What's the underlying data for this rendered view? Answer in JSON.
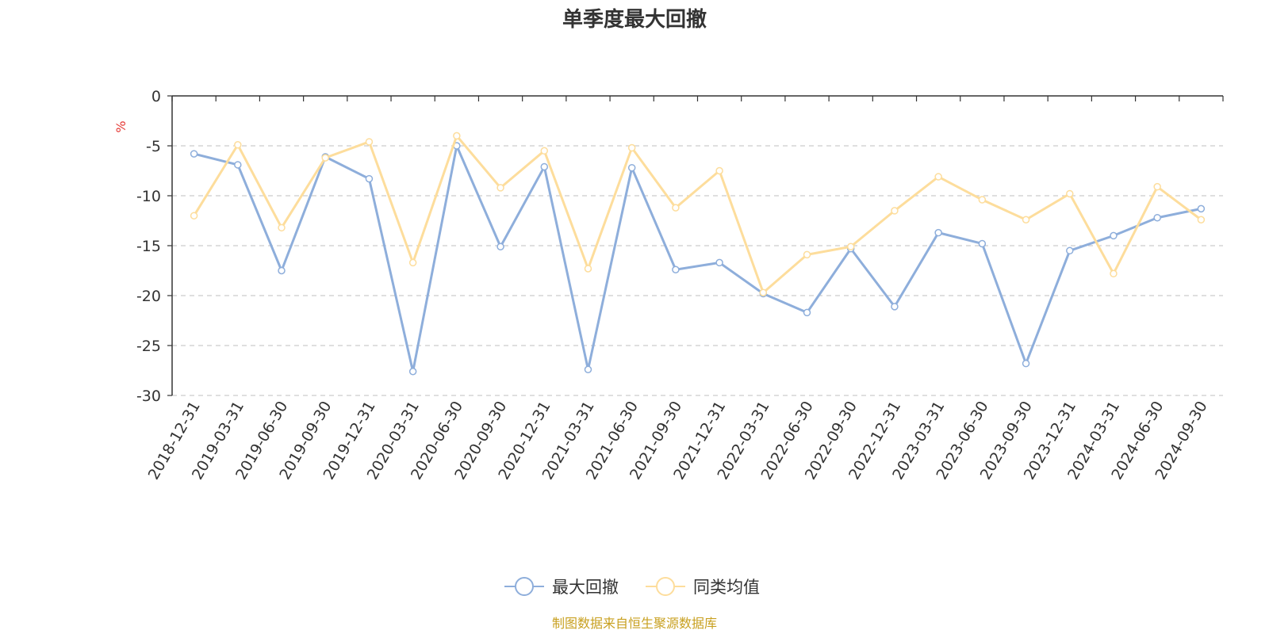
{
  "chart_data": {
    "type": "line",
    "title": "单季度最大回撤",
    "y_unit": "%",
    "ylim": [
      -30,
      0
    ],
    "y_ticks": [
      0,
      -5,
      -10,
      -15,
      -20,
      -25,
      -30
    ],
    "grid": "horizontal-dashed",
    "legend_position": "bottom-center",
    "categories": [
      "2018-12-31",
      "2019-03-31",
      "2019-06-30",
      "2019-09-30",
      "2019-12-31",
      "2020-03-31",
      "2020-06-30",
      "2020-09-30",
      "2020-12-31",
      "2021-03-31",
      "2021-06-30",
      "2021-09-30",
      "2021-12-31",
      "2022-03-31",
      "2022-06-30",
      "2022-09-30",
      "2022-12-31",
      "2023-03-31",
      "2023-06-30",
      "2023-09-30",
      "2023-12-31",
      "2024-03-31",
      "2024-06-30",
      "2024-09-30"
    ],
    "series": [
      {
        "name": "最大回撤",
        "color": "#8eaedb",
        "values": [
          -5.8,
          -6.9,
          -17.5,
          -6.1,
          -8.3,
          -27.6,
          -5.0,
          -15.1,
          -7.1,
          -27.4,
          -7.2,
          -17.4,
          -16.7,
          -19.8,
          -21.7,
          -15.3,
          -21.1,
          -13.7,
          -14.8,
          -26.8,
          -15.5,
          -14.0,
          -12.2,
          -11.3
        ]
      },
      {
        "name": "同类均值",
        "color": "#fddd9c",
        "values": [
          -12.0,
          -4.9,
          -13.2,
          -6.2,
          -4.6,
          -16.7,
          -4.0,
          -9.2,
          -5.5,
          -17.3,
          -5.2,
          -11.2,
          -7.5,
          -19.7,
          -15.9,
          -15.1,
          -11.5,
          -8.1,
          -10.4,
          -12.4,
          -9.8,
          -17.8,
          -9.1,
          -12.4
        ]
      }
    ]
  },
  "footer": {
    "source": "制图数据来自恒生聚源数据库",
    "source_color": "#c8a020",
    "unit_color": "#e53935"
  }
}
